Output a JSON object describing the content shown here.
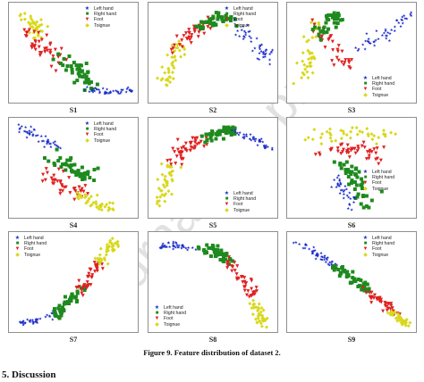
{
  "figure": {
    "caption": "Figure 9. Feature distribution of dataset 2.",
    "section_heading": "5. Discussion",
    "watermark": "Journal Pre-proof"
  },
  "colors": {
    "left_hand": "#1a2bc8",
    "right_hand": "#1e8a1e",
    "foot": "#e02020",
    "tongue": "#d8d81c"
  },
  "chart_data": [
    {
      "type": "scatter",
      "panel_label": "S1",
      "legend_pos": "top-right",
      "legend": [
        "Left hand",
        "Right hand",
        "Foot",
        "Toignue"
      ],
      "clusters": [
        {
          "class": "tongue",
          "path": [
            [
              0.06,
              0.93
            ],
            [
              0.16,
              0.82
            ],
            [
              0.22,
              0.7
            ]
          ],
          "spread": 0.06,
          "n": 40
        },
        {
          "class": "foot",
          "path": [
            [
              0.1,
              0.72
            ],
            [
              0.3,
              0.5
            ],
            [
              0.45,
              0.38
            ]
          ],
          "spread": 0.07,
          "n": 45
        },
        {
          "class": "right_hand",
          "path": [
            [
              0.38,
              0.45
            ],
            [
              0.55,
              0.3
            ],
            [
              0.65,
              0.15
            ]
          ],
          "spread": 0.07,
          "n": 45
        },
        {
          "class": "left_hand",
          "path": [
            [
              0.6,
              0.12
            ],
            [
              0.8,
              0.07
            ],
            [
              0.97,
              0.1
            ]
          ],
          "spread": 0.03,
          "n": 45
        }
      ]
    },
    {
      "type": "scatter",
      "panel_label": "S2",
      "legend_pos": "top-right",
      "legend": [
        "Left hand",
        "Right hand",
        "Foot",
        "Toignue"
      ],
      "clusters": [
        {
          "class": "tongue",
          "path": [
            [
              0.08,
              0.15
            ],
            [
              0.15,
              0.4
            ],
            [
              0.22,
              0.6
            ]
          ],
          "spread": 0.06,
          "n": 40
        },
        {
          "class": "foot",
          "path": [
            [
              0.18,
              0.55
            ],
            [
              0.32,
              0.72
            ],
            [
              0.45,
              0.82
            ]
          ],
          "spread": 0.06,
          "n": 40
        },
        {
          "class": "right_hand",
          "path": [
            [
              0.4,
              0.8
            ],
            [
              0.55,
              0.9
            ],
            [
              0.7,
              0.85
            ]
          ],
          "spread": 0.06,
          "n": 45
        },
        {
          "class": "left_hand",
          "path": [
            [
              0.68,
              0.82
            ],
            [
              0.85,
              0.62
            ],
            [
              0.97,
              0.45
            ]
          ],
          "spread": 0.05,
          "n": 45
        }
      ]
    },
    {
      "type": "scatter",
      "panel_label": "S3",
      "legend_pos": "bottom-right",
      "legend": [
        "Left hand",
        "Right hand",
        "Foot",
        "Toignue"
      ],
      "clusters": [
        {
          "class": "tongue",
          "path": [
            [
              0.08,
              0.2
            ],
            [
              0.15,
              0.55
            ],
            [
              0.2,
              0.85
            ]
          ],
          "spread": 0.06,
          "n": 40
        },
        {
          "class": "foot",
          "path": [
            [
              0.22,
              0.8
            ],
            [
              0.32,
              0.55
            ],
            [
              0.45,
              0.35
            ]
          ],
          "spread": 0.07,
          "n": 40
        },
        {
          "class": "right_hand",
          "path": [
            [
              0.2,
              0.7
            ],
            [
              0.32,
              0.85
            ],
            [
              0.42,
              0.92
            ]
          ],
          "spread": 0.05,
          "n": 35
        },
        {
          "class": "left_hand",
          "path": [
            [
              0.55,
              0.55
            ],
            [
              0.78,
              0.72
            ],
            [
              0.97,
              0.92
            ]
          ],
          "spread": 0.05,
          "n": 45
        }
      ]
    },
    {
      "type": "scatter",
      "panel_label": "S4",
      "legend_pos": "top-right",
      "legend": [
        "Left hand",
        "Right hand",
        "Foot",
        "Toignue"
      ],
      "clusters": [
        {
          "class": "left_hand",
          "path": [
            [
              0.05,
              0.97
            ],
            [
              0.2,
              0.85
            ],
            [
              0.35,
              0.72
            ]
          ],
          "spread": 0.04,
          "n": 45
        },
        {
          "class": "right_hand",
          "path": [
            [
              0.3,
              0.65
            ],
            [
              0.5,
              0.5
            ],
            [
              0.62,
              0.4
            ]
          ],
          "spread": 0.08,
          "n": 45
        },
        {
          "class": "foot",
          "path": [
            [
              0.3,
              0.45
            ],
            [
              0.45,
              0.28
            ],
            [
              0.6,
              0.2
            ]
          ],
          "spread": 0.07,
          "n": 40
        },
        {
          "class": "tongue",
          "path": [
            [
              0.52,
              0.22
            ],
            [
              0.7,
              0.1
            ],
            [
              0.85,
              0.06
            ]
          ],
          "spread": 0.05,
          "n": 40
        }
      ]
    },
    {
      "type": "scatter",
      "panel_label": "S5",
      "legend_pos": "bottom-right",
      "legend": [
        "Left hand",
        "Right hand",
        "Foot",
        "Toignue"
      ],
      "clusters": [
        {
          "class": "tongue",
          "path": [
            [
              0.05,
              0.08
            ],
            [
              0.1,
              0.35
            ],
            [
              0.15,
              0.55
            ]
          ],
          "spread": 0.05,
          "n": 40
        },
        {
          "class": "foot",
          "path": [
            [
              0.14,
              0.55
            ],
            [
              0.28,
              0.72
            ],
            [
              0.42,
              0.82
            ]
          ],
          "spread": 0.07,
          "n": 45
        },
        {
          "class": "right_hand",
          "path": [
            [
              0.42,
              0.82
            ],
            [
              0.58,
              0.92
            ],
            [
              0.72,
              0.9
            ]
          ],
          "spread": 0.06,
          "n": 45
        },
        {
          "class": "left_hand",
          "path": [
            [
              0.68,
              0.9
            ],
            [
              0.85,
              0.82
            ],
            [
              0.96,
              0.72
            ]
          ],
          "spread": 0.04,
          "n": 40
        }
      ]
    },
    {
      "type": "scatter",
      "panel_label": "S6",
      "legend_pos": "middle-right",
      "legend": [
        "Left hand",
        "Right hand",
        "Foot",
        "Toignue"
      ],
      "clusters": [
        {
          "class": "tongue",
          "path": [
            [
              0.1,
              0.85
            ],
            [
              0.45,
              0.9
            ],
            [
              0.85,
              0.85
            ]
          ],
          "spread": 0.06,
          "n": 40
        },
        {
          "class": "foot",
          "path": [
            [
              0.2,
              0.7
            ],
            [
              0.5,
              0.72
            ],
            [
              0.75,
              0.65
            ]
          ],
          "spread": 0.09,
          "n": 45
        },
        {
          "class": "right_hand",
          "path": [
            [
              0.42,
              0.55
            ],
            [
              0.55,
              0.35
            ],
            [
              0.6,
              0.15
            ]
          ],
          "spread": 0.07,
          "n": 45
        },
        {
          "class": "left_hand",
          "path": [
            [
              0.35,
              0.4
            ],
            [
              0.45,
              0.2
            ],
            [
              0.5,
              0.05
            ]
          ],
          "spread": 0.05,
          "n": 35
        }
      ]
    },
    {
      "type": "scatter",
      "panel_label": "S7",
      "legend_pos": "top-left",
      "legend": [
        "Left hand",
        "Right hand",
        "Foot",
        "Toignue"
      ],
      "clusters": [
        {
          "class": "left_hand",
          "path": [
            [
              0.04,
              0.05
            ],
            [
              0.2,
              0.1
            ],
            [
              0.4,
              0.18
            ]
          ],
          "spread": 0.03,
          "n": 45
        },
        {
          "class": "right_hand",
          "path": [
            [
              0.35,
              0.15
            ],
            [
              0.45,
              0.28
            ],
            [
              0.58,
              0.45
            ]
          ],
          "spread": 0.05,
          "n": 45
        },
        {
          "class": "foot",
          "path": [
            [
              0.55,
              0.4
            ],
            [
              0.65,
              0.6
            ],
            [
              0.72,
              0.75
            ]
          ],
          "spread": 0.05,
          "n": 40
        },
        {
          "class": "tongue",
          "path": [
            [
              0.7,
              0.72
            ],
            [
              0.78,
              0.85
            ],
            [
              0.85,
              0.95
            ]
          ],
          "spread": 0.04,
          "n": 40
        }
      ]
    },
    {
      "type": "scatter",
      "panel_label": "S8",
      "legend_pos": "bottom-left",
      "legend": [
        "Left hand",
        "Right hand",
        "Foot",
        "Toignue"
      ],
      "clusters": [
        {
          "class": "left_hand",
          "path": [
            [
              0.05,
              0.9
            ],
            [
              0.2,
              0.91
            ],
            [
              0.35,
              0.88
            ]
          ],
          "spread": 0.03,
          "n": 40
        },
        {
          "class": "right_hand",
          "path": [
            [
              0.35,
              0.88
            ],
            [
              0.52,
              0.85
            ],
            [
              0.65,
              0.72
            ]
          ],
          "spread": 0.05,
          "n": 45
        },
        {
          "class": "foot",
          "path": [
            [
              0.62,
              0.75
            ],
            [
              0.75,
              0.55
            ],
            [
              0.85,
              0.3
            ]
          ],
          "spread": 0.05,
          "n": 40
        },
        {
          "class": "tongue",
          "path": [
            [
              0.82,
              0.3
            ],
            [
              0.88,
              0.15
            ],
            [
              0.92,
              0.05
            ]
          ],
          "spread": 0.04,
          "n": 40
        }
      ]
    },
    {
      "type": "scatter",
      "panel_label": "S9",
      "legend_pos": "top-right",
      "legend": [
        "Left hand",
        "Right hand",
        "Foot",
        "Toignue"
      ],
      "clusters": [
        {
          "class": "left_hand",
          "path": [
            [
              0.04,
              0.95
            ],
            [
              0.2,
              0.82
            ],
            [
              0.35,
              0.7
            ]
          ],
          "spread": 0.03,
          "n": 45
        },
        {
          "class": "right_hand",
          "path": [
            [
              0.35,
              0.7
            ],
            [
              0.5,
              0.55
            ],
            [
              0.65,
              0.4
            ]
          ],
          "spread": 0.04,
          "n": 45
        },
        {
          "class": "foot",
          "path": [
            [
              0.6,
              0.42
            ],
            [
              0.75,
              0.28
            ],
            [
              0.85,
              0.18
            ]
          ],
          "spread": 0.04,
          "n": 40
        },
        {
          "class": "tongue",
          "path": [
            [
              0.82,
              0.18
            ],
            [
              0.9,
              0.1
            ],
            [
              0.97,
              0.05
            ]
          ],
          "spread": 0.03,
          "n": 40
        }
      ]
    }
  ]
}
